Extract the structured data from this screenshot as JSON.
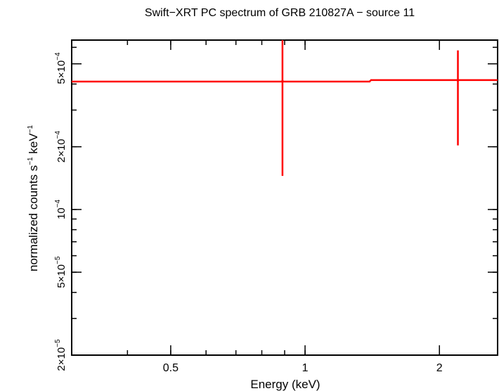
{
  "chart_data": {
    "type": "scatter",
    "title": "Swift−XRT PC spectrum of GRB 210827A − source 11",
    "xlabel": "Energy (keV)",
    "ylabel_parts": [
      "normalized counts s",
      "−1",
      " keV",
      "−1"
    ],
    "x_scale": "log",
    "y_scale": "log",
    "xlim": [
      0.3,
      2.7
    ],
    "ylim": [
      2e-05,
      0.00065
    ],
    "x_ticks": [
      {
        "value": 0.5,
        "label": "0.5"
      },
      {
        "value": 1,
        "label": "1"
      },
      {
        "value": 2,
        "label": "2"
      }
    ],
    "y_ticks": [
      {
        "value": 2e-05,
        "mant": "2×10",
        "exp": "−5"
      },
      {
        "value": 5e-05,
        "mant": "5×10",
        "exp": "−5"
      },
      {
        "value": 0.0001,
        "mant": "10",
        "exp": "−4"
      },
      {
        "value": 0.0002,
        "mant": "2×10",
        "exp": "−4"
      },
      {
        "value": 0.0005,
        "mant": "5×10",
        "exp": "−4"
      }
    ],
    "data_points": [
      {
        "x": 0.89,
        "y": 0.000415,
        "y_low": 0.000145,
        "y_high": 0.00068
      },
      {
        "x": 2.2,
        "y": 0.000415,
        "y_low": 0.000203,
        "y_high": 0.00058
      }
    ],
    "model": {
      "segments": [
        {
          "x0": 0.3,
          "x1": 1.4,
          "y": 0.000411
        },
        {
          "x0": 1.4,
          "x1": 2.7,
          "y": 0.000418
        }
      ]
    },
    "colors": {
      "data": "#ff0000",
      "model": "#ff0000",
      "axes": "#000000"
    }
  }
}
